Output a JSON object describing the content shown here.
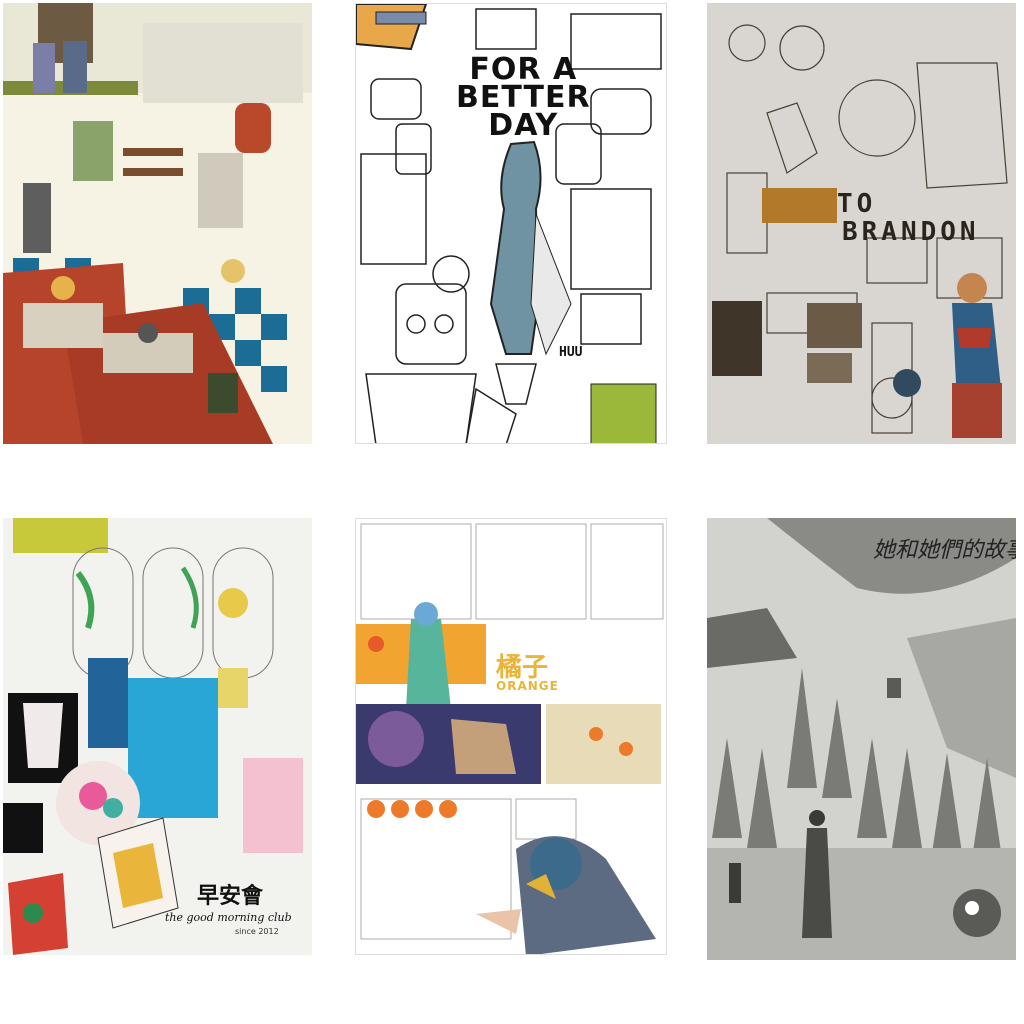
{
  "posters": [
    {
      "name": "cafe-illustration",
      "title": ""
    },
    {
      "name": "for-a-better-day",
      "title": "FOR A BETTER DAY",
      "title_lines": [
        "FOR A",
        "BETTER",
        "DAY"
      ],
      "signature": "HUU"
    },
    {
      "name": "to-brandon",
      "title": "TO BRANDON",
      "title_lines": [
        "TO",
        "BRANDON"
      ]
    },
    {
      "name": "good-morning-club",
      "title_cn": "早安會",
      "title_en": "the good morning club",
      "year": "since 2012"
    },
    {
      "name": "orange",
      "title_cn": "橘子",
      "title_en": "ORANGE"
    },
    {
      "name": "her-story",
      "title_cn": "她和她們的故事"
    }
  ]
}
